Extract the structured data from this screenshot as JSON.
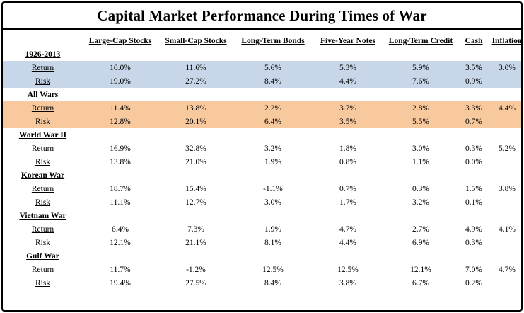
{
  "title": "Capital Market Performance During Times of War",
  "chart_data": {
    "type": "table",
    "title": "Capital Market Performance During Times of War",
    "columns": [
      "Large-Cap Stocks",
      "Small-Cap Stocks",
      "Long-Term Bonds",
      "Five-Year Notes",
      "Long-Term Credit",
      "Cash",
      "Inflation"
    ],
    "row_metric_labels": [
      "Return",
      "Risk"
    ],
    "row_groups": [
      {
        "name": "1926-2013",
        "highlight": "blue",
        "rows": [
          {
            "label": "Return",
            "values": [
              "10.0%",
              "11.6%",
              "5.6%",
              "5.3%",
              "5.9%",
              "3.5%",
              "3.0%"
            ]
          },
          {
            "label": "Risk",
            "values": [
              "19.0%",
              "27.2%",
              "8.4%",
              "4.4%",
              "7.6%",
              "0.9%",
              ""
            ]
          }
        ]
      },
      {
        "name": "All Wars",
        "highlight": "orange",
        "rows": [
          {
            "label": "Return",
            "values": [
              "11.4%",
              "13.8%",
              "2.2%",
              "3.7%",
              "2.8%",
              "3.3%",
              "4.4%"
            ]
          },
          {
            "label": "Risk",
            "values": [
              "12.8%",
              "20.1%",
              "6.4%",
              "3.5%",
              "5.5%",
              "0.7%",
              ""
            ]
          }
        ]
      },
      {
        "name": "World War II",
        "highlight": null,
        "rows": [
          {
            "label": "Return",
            "values": [
              "16.9%",
              "32.8%",
              "3.2%",
              "1.8%",
              "3.0%",
              "0.3%",
              "5.2%"
            ]
          },
          {
            "label": "Risk",
            "values": [
              "13.8%",
              "21.0%",
              "1.9%",
              "0.8%",
              "1.1%",
              "0.0%",
              ""
            ]
          }
        ]
      },
      {
        "name": "Korean War",
        "highlight": null,
        "rows": [
          {
            "label": "Return",
            "values": [
              "18.7%",
              "15.4%",
              "-1.1%",
              "0.7%",
              "0.3%",
              "1.5%",
              "3.8%"
            ]
          },
          {
            "label": "Risk",
            "values": [
              "11.1%",
              "12.7%",
              "3.0%",
              "1.7%",
              "3.2%",
              "0.1%",
              ""
            ]
          }
        ]
      },
      {
        "name": "Vietnam War",
        "highlight": null,
        "rows": [
          {
            "label": "Return",
            "values": [
              "6.4%",
              "7.3%",
              "1.9%",
              "4.7%",
              "2.7%",
              "4.9%",
              "4.1%"
            ]
          },
          {
            "label": "Risk",
            "values": [
              "12.1%",
              "21.1%",
              "8.1%",
              "4.4%",
              "6.9%",
              "0.3%",
              ""
            ]
          }
        ]
      },
      {
        "name": "Gulf War",
        "highlight": null,
        "rows": [
          {
            "label": "Return",
            "values": [
              "11.7%",
              "-1.2%",
              "12.5%",
              "12.5%",
              "12.1%",
              "7.0%",
              "4.7%"
            ]
          },
          {
            "label": "Risk",
            "values": [
              "19.4%",
              "27.5%",
              "8.4%",
              "3.8%",
              "6.7%",
              "0.2%",
              ""
            ]
          }
        ]
      }
    ],
    "highlight_colors": {
      "blue": "#c7d6e9",
      "orange": "#f9c99e"
    },
    "layout": {
      "grid": "off",
      "header_style": "bold-underline",
      "outer_border": "#000000"
    }
  }
}
